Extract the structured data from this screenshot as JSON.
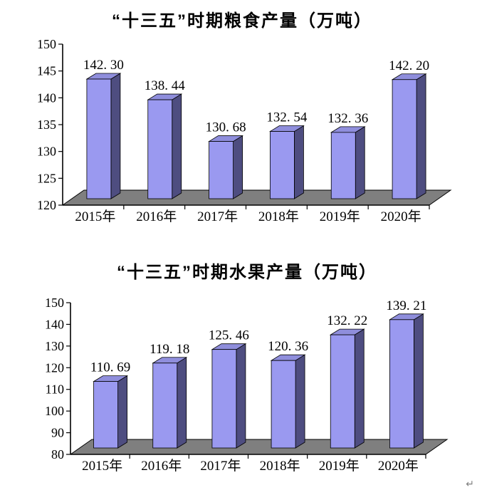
{
  "page": {
    "background": "#FFFFFF",
    "paragraph_mark": "↵"
  },
  "chart_data": [
    {
      "type": "bar",
      "variant": "3d-column",
      "id": "grain-chart",
      "title": "“十三五”时期粮食产量（万吨）",
      "categories": [
        "2015年",
        "2016年",
        "2017年",
        "2018年",
        "2019年",
        "2020年"
      ],
      "values": [
        142.3,
        138.44,
        130.68,
        132.54,
        132.36,
        142.2
      ],
      "data_labels": [
        "142. 30",
        "138. 44",
        "130. 68",
        "132. 54",
        "132. 36",
        "142. 20"
      ],
      "xlabel": "",
      "ylabel": "",
      "ylim": [
        120,
        150
      ],
      "ytick_step": 5,
      "ytick_labels": [
        "120",
        "125",
        "130",
        "135",
        "140",
        "145",
        "150"
      ],
      "grid": false,
      "legend": "none",
      "colors": {
        "bar_front": "#9A99F0",
        "bar_top": "#8F8EDC",
        "bar_side": "#4E4D80",
        "floor": "#7F7F7F",
        "outline": "#000000",
        "text": "#000000"
      }
    },
    {
      "type": "bar",
      "variant": "3d-column",
      "id": "fruit-chart",
      "title": "“十三五”时期水果产量（万吨）",
      "categories": [
        "2015年",
        "2016年",
        "2017年",
        "2018年",
        "2019年",
        "2020年"
      ],
      "values": [
        110.69,
        119.18,
        125.46,
        120.36,
        132.22,
        139.21
      ],
      "data_labels": [
        "110. 69",
        "119. 18",
        "125. 46",
        "120. 36",
        "132. 22",
        "139. 21"
      ],
      "xlabel": "",
      "ylabel": "",
      "ylim": [
        80,
        150
      ],
      "ytick_step": 10,
      "ytick_labels": [
        "80",
        "90",
        "100",
        "110",
        "120",
        "130",
        "140",
        "150"
      ],
      "grid": false,
      "legend": "none",
      "colors": {
        "bar_front": "#9A99F0",
        "bar_top": "#8F8EDC",
        "bar_side": "#4E4D80",
        "floor": "#7F7F7F",
        "outline": "#000000",
        "text": "#000000"
      }
    }
  ]
}
